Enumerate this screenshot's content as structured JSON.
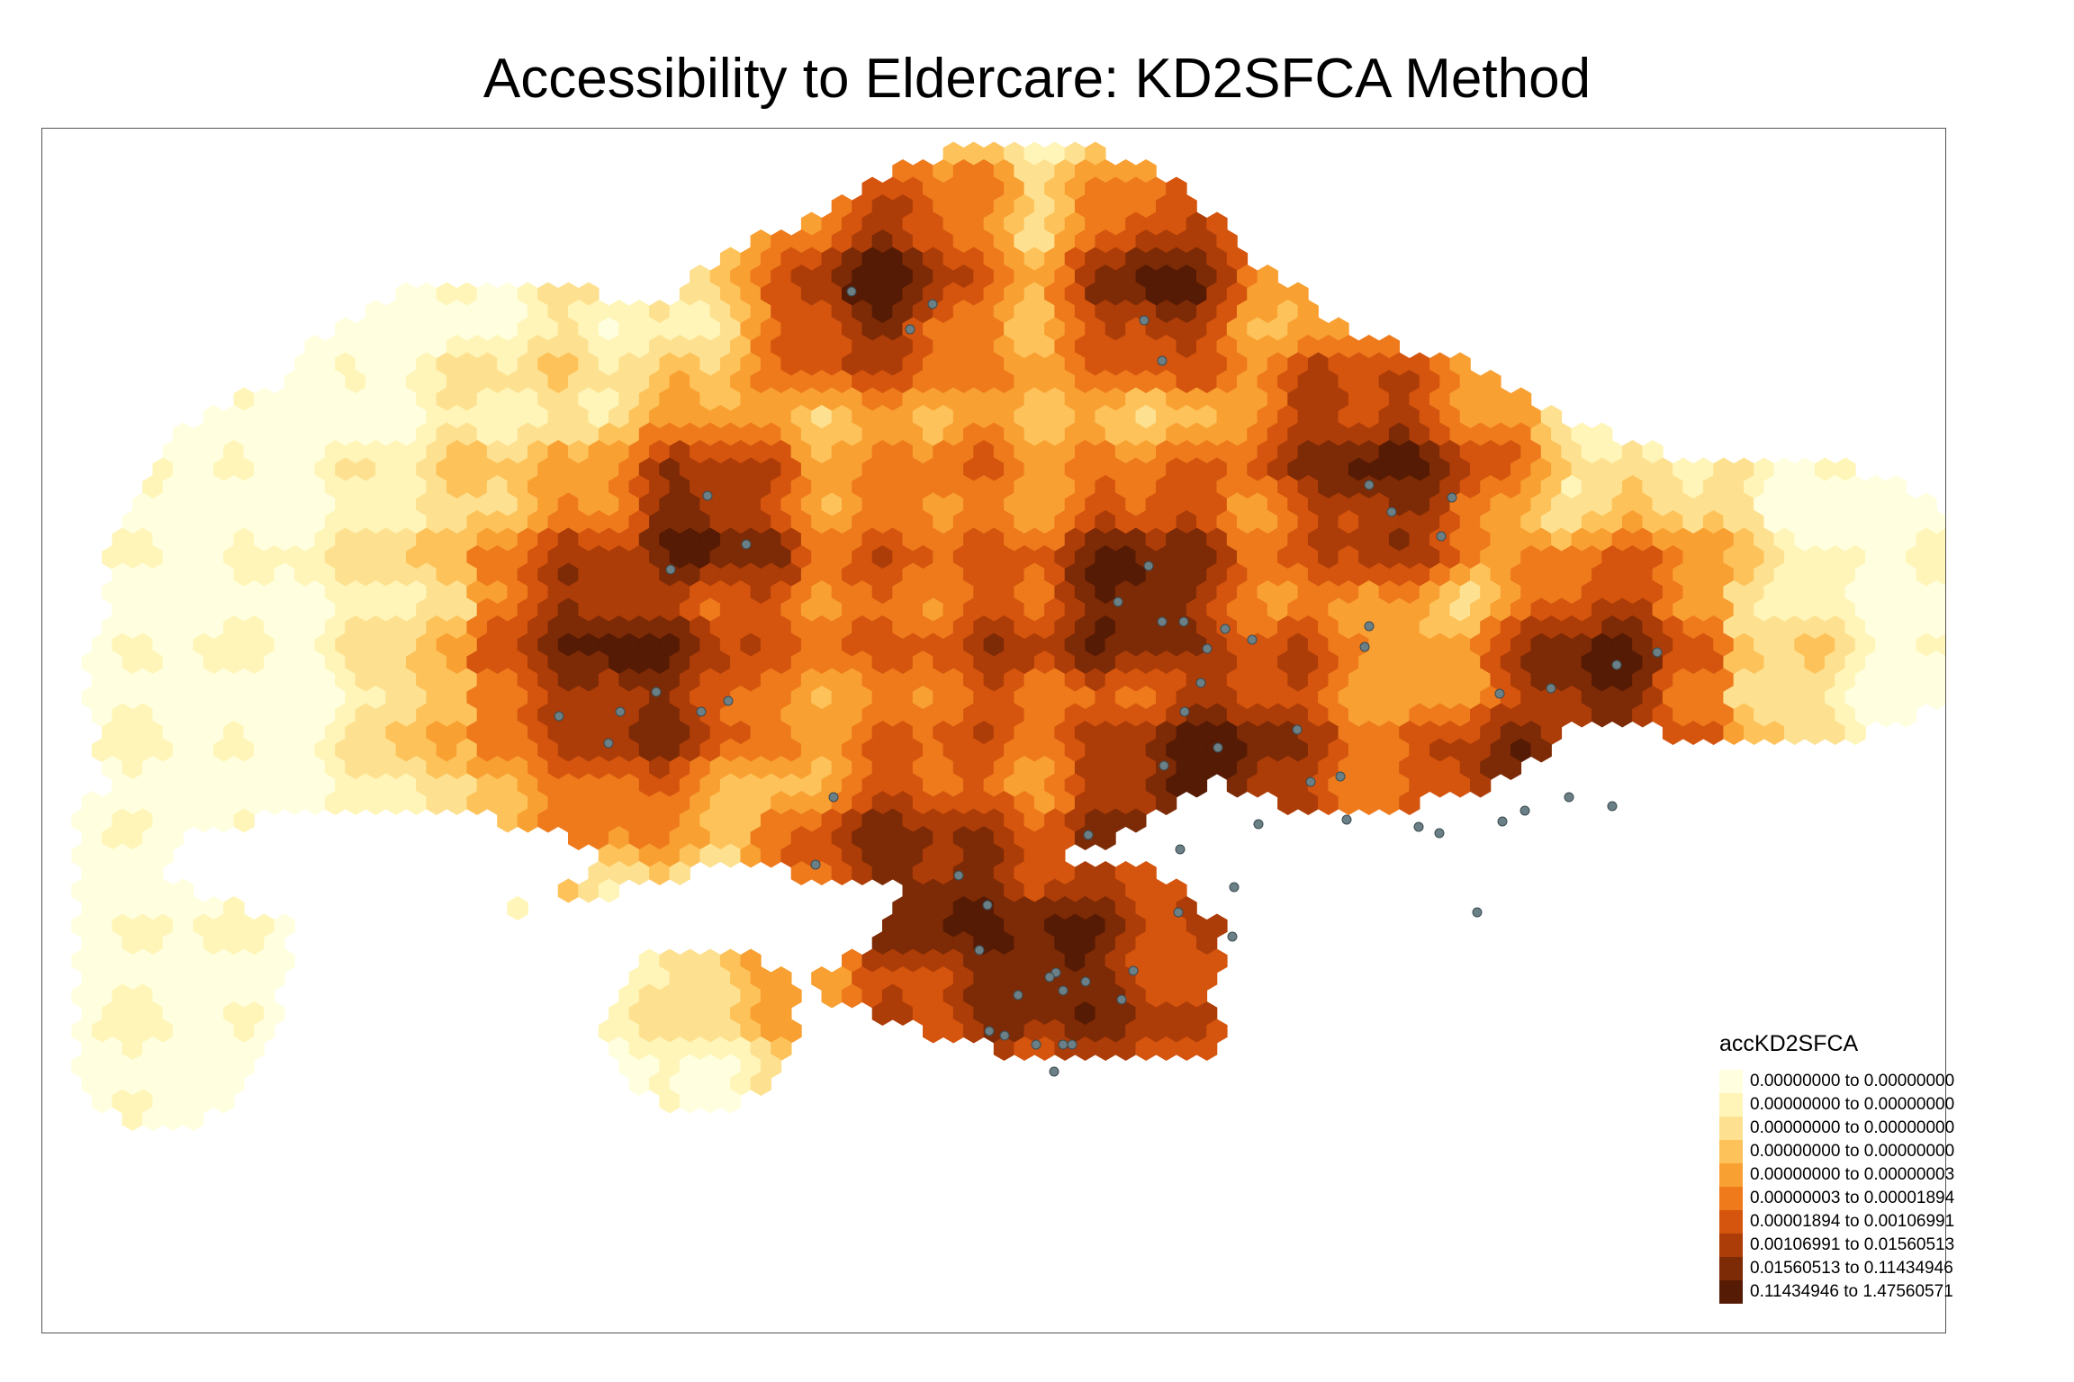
{
  "title": "Accessibility to Eldercare: KD2SFCA Method",
  "legend": {
    "title": "accKD2SFCA",
    "classes": [
      {
        "label": "0.00000000 to 0.00000000",
        "color": "#ffffe0"
      },
      {
        "label": "0.00000000 to 0.00000000",
        "color": "#fff5b8"
      },
      {
        "label": "0.00000000 to 0.00000000",
        "color": "#fde191"
      },
      {
        "label": "0.00000000 to 0.00000000",
        "color": "#fdc35a"
      },
      {
        "label": "0.00000000 to 0.00000003",
        "color": "#f9a032"
      },
      {
        "label": "0.00000003 to 0.00001894",
        "color": "#ee7a1c"
      },
      {
        "label": "0.00001894 to 0.00106991",
        "color": "#d5550e"
      },
      {
        "label": "0.00106991 to 0.01560513",
        "color": "#ad3d08"
      },
      {
        "label": "0.01560513 to 0.11434946",
        "color": "#7d2b06"
      },
      {
        "label": "0.11434946 to 1.47560571",
        "color": "#561b04"
      }
    ]
  },
  "eldercare_marker_color": "#6a7f86",
  "map_colors": {
    "border": "#555555",
    "background": "#ffffff"
  }
}
